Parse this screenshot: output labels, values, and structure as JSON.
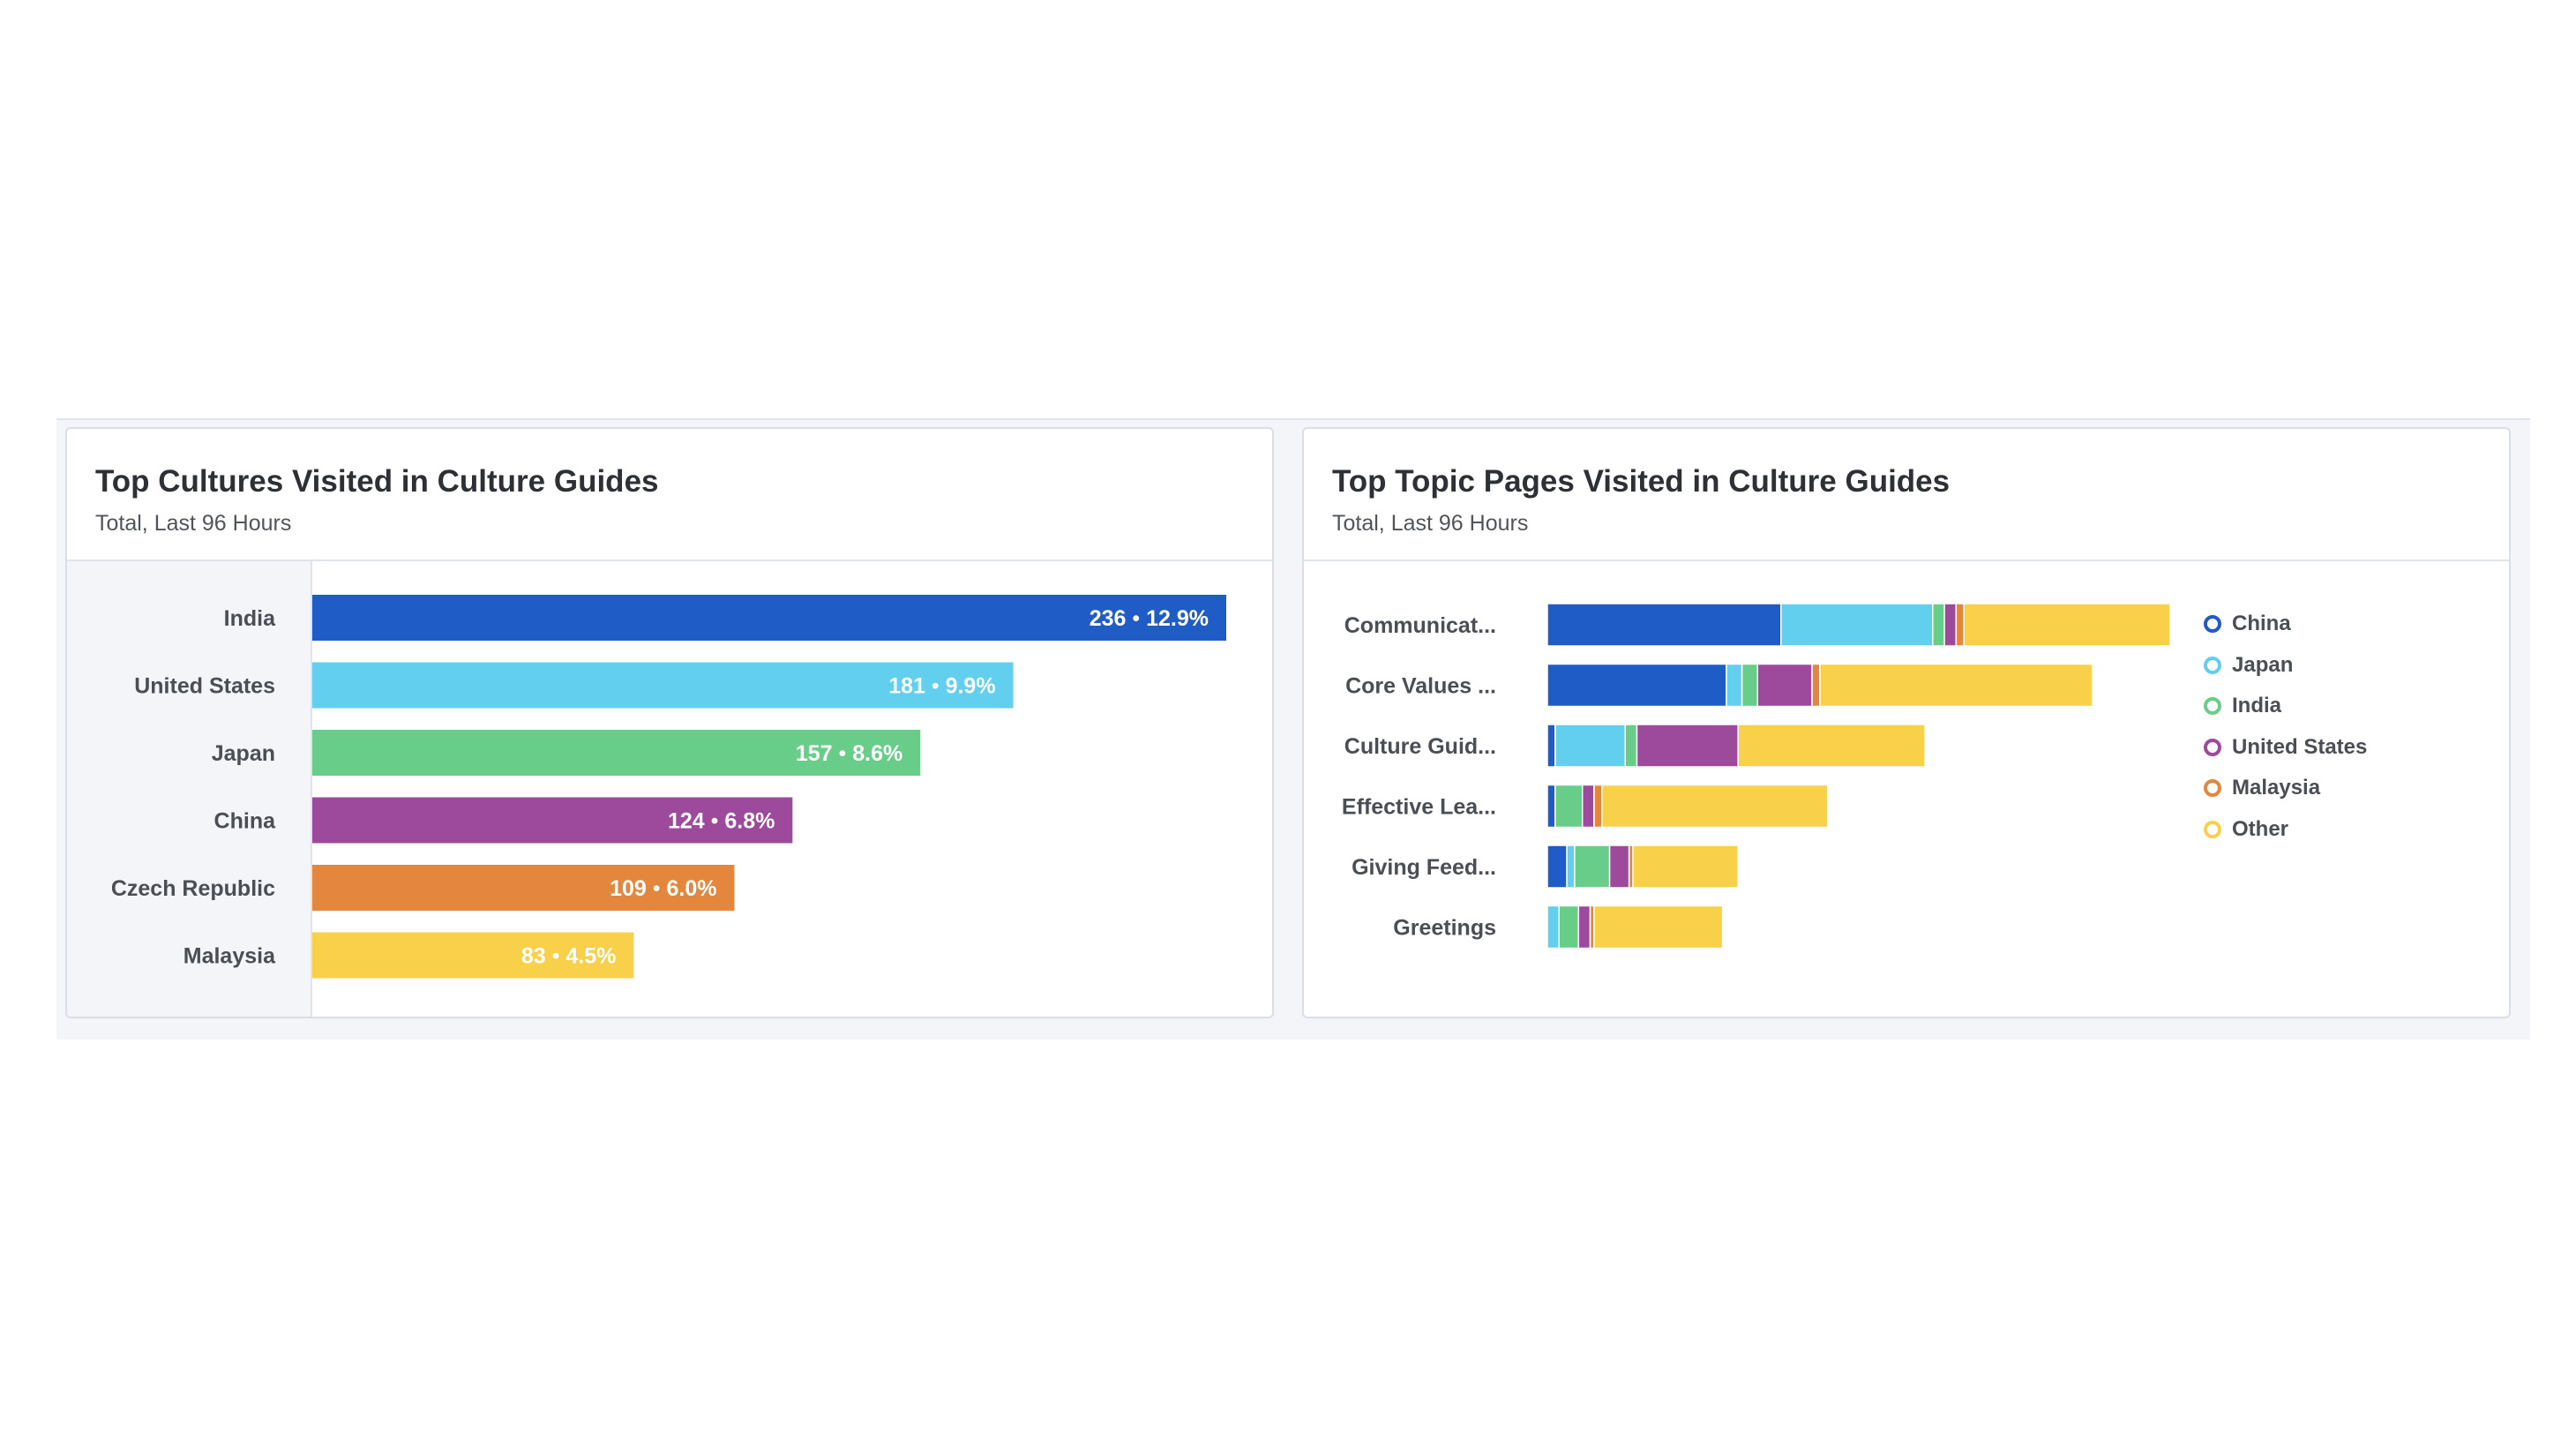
{
  "left_card": {
    "title": "Top Cultures Visited in Culture Guides",
    "subtitle": "Total, Last 96 Hours"
  },
  "right_card": {
    "title": "Top Topic Pages Visited in Culture Guides",
    "subtitle": "Total, Last 96 Hours"
  },
  "colors": {
    "blue": "#205cc5",
    "cyan": "#62cfee",
    "green": "#68cd88",
    "purple": "#9e4a9c",
    "orange": "#e3863e",
    "yellow": "#f9d04a",
    "label_text": "#4a4f56",
    "value_light": "#ffffff",
    "value_dark": "#2d3135",
    "percent_muted": "#8a8f96"
  },
  "chart_data": [
    {
      "type": "bar",
      "orientation": "horizontal",
      "title": "Top Cultures Visited in Culture Guides",
      "subtitle": "Total, Last 96 Hours",
      "categories": [
        "India",
        "United States",
        "Japan",
        "China",
        "Czech Republic",
        "Malaysia"
      ],
      "values": [
        236,
        181,
        157,
        124,
        109,
        83
      ],
      "percents": [
        "12.9%",
        "9.9%",
        "8.6%",
        "6.8%",
        "6.0%",
        "4.5%"
      ],
      "bar_colors": [
        "#205cc5",
        "#62cfee",
        "#68cd88",
        "#9e4a9c",
        "#e3863e",
        "#f9d04a"
      ],
      "separator": "•",
      "xlim": [
        0,
        236
      ],
      "grid": false,
      "legend": "none"
    },
    {
      "type": "bar",
      "orientation": "horizontal",
      "stacked": true,
      "title": "Top Topic Pages Visited in Culture Guides",
      "subtitle": "Total, Last 96 Hours",
      "categories": [
        "Communicat...",
        "Core Values ...",
        "Culture Guid...",
        "Effective Lea...",
        "Giving Feed...",
        "Greetings"
      ],
      "series": [
        {
          "name": "China",
          "color": "#205cc5",
          "values": [
            60,
            46,
            2,
            2,
            5,
            0
          ]
        },
        {
          "name": "Japan",
          "color": "#62cfee",
          "values": [
            39,
            4,
            18,
            0,
            2,
            3
          ]
        },
        {
          "name": "India",
          "color": "#68cd88",
          "values": [
            3,
            4,
            3,
            7,
            9,
            5
          ]
        },
        {
          "name": "United States",
          "color": "#9e4a9c",
          "values": [
            3,
            14,
            26,
            3,
            5,
            3
          ]
        },
        {
          "name": "Malaysia",
          "color": "#e3863e",
          "values": [
            2,
            2,
            0,
            2,
            1,
            1
          ]
        },
        {
          "name": "Other",
          "color": "#f9d04a",
          "values": [
            53,
            70,
            48,
            58,
            27,
            33
          ]
        }
      ],
      "xlim": [
        0,
        160
      ],
      "grid": false,
      "legend": "right"
    }
  ]
}
